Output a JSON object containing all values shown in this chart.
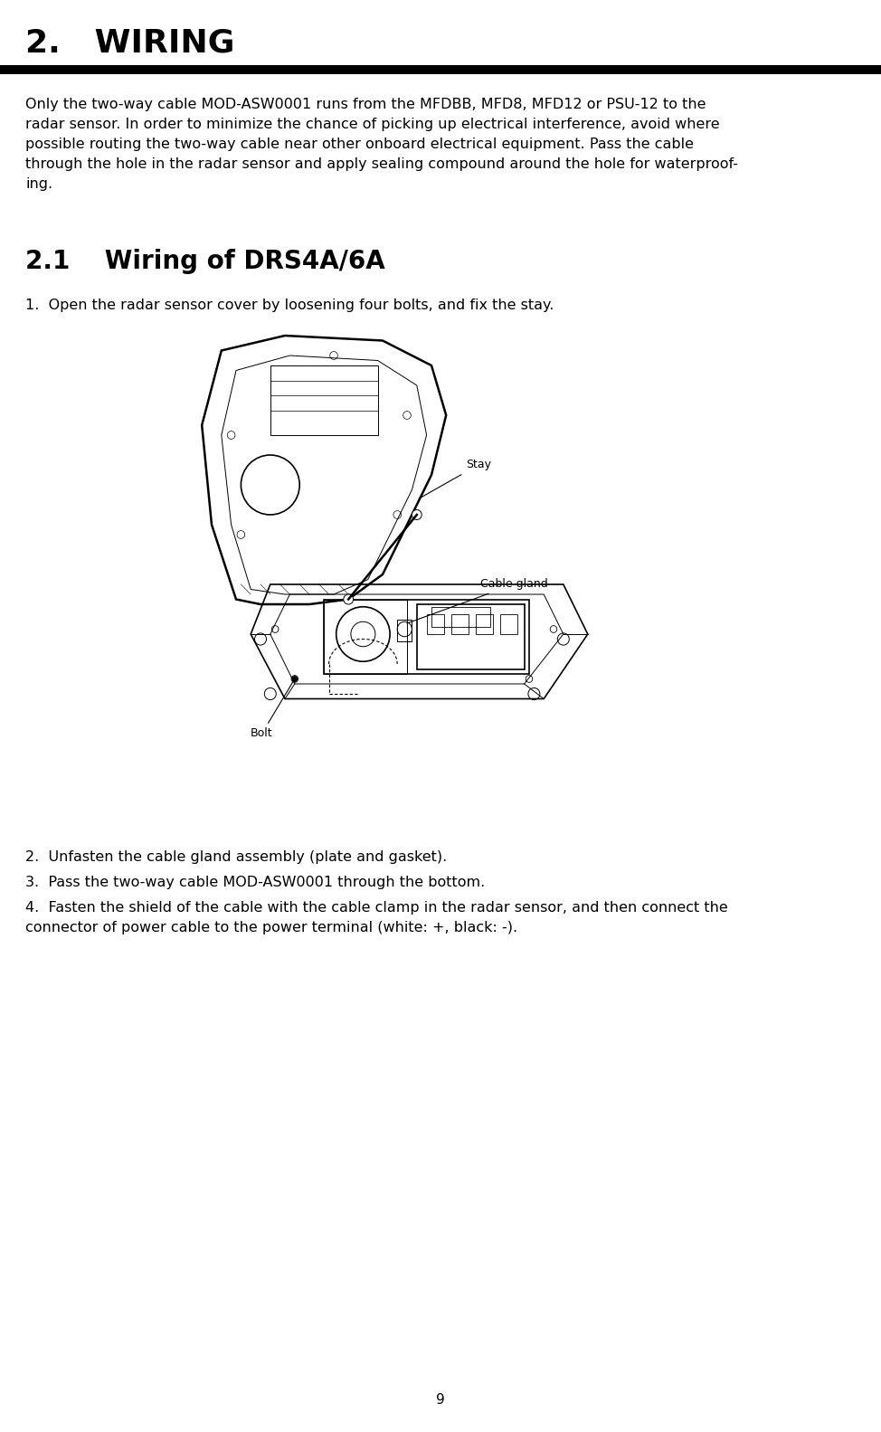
{
  "bg_color": "#ffffff",
  "text_color": "#000000",
  "title": "2.   WIRING",
  "title_fontsize": 26,
  "divider_color": "#000000",
  "divider_thickness": 5,
  "body_text": "Only the two-way cable MOD-ASW0001 runs from the MFDBB, MFD8, MFD12 or PSU-12 to the\nradar sensor. In order to minimize the chance of picking up electrical interference, avoid where\npossible routing the two-way cable near other onboard electrical equipment. Pass the cable\nthrough the hole in the radar sensor and apply sealing compound around the hole for waterproof-\ning.",
  "body_fontsize": 11.5,
  "section_title": "2.1    Wiring of DRS4A/6A",
  "section_title_fontsize": 20,
  "step1": "1.  Open the radar sensor cover by loosening four bolts, and fix the stay.",
  "step2": "2.  Unfasten the cable gland assembly (plate and gasket).",
  "step3": "3.  Pass the two-way cable MOD-ASW0001 through the bottom.",
  "step4": "4.  Fasten the shield of the cable with the cable clamp in the radar sensor, and then connect the\n    connector of power cable to the power terminal (white: +, black: -).",
  "step_fontsize": 11.5,
  "label_stay": "Stay",
  "label_cable_gland": "Cable gland",
  "label_bolt": "Bolt",
  "label_fontsize": 10,
  "page_number": "9",
  "page_number_fontsize": 11
}
